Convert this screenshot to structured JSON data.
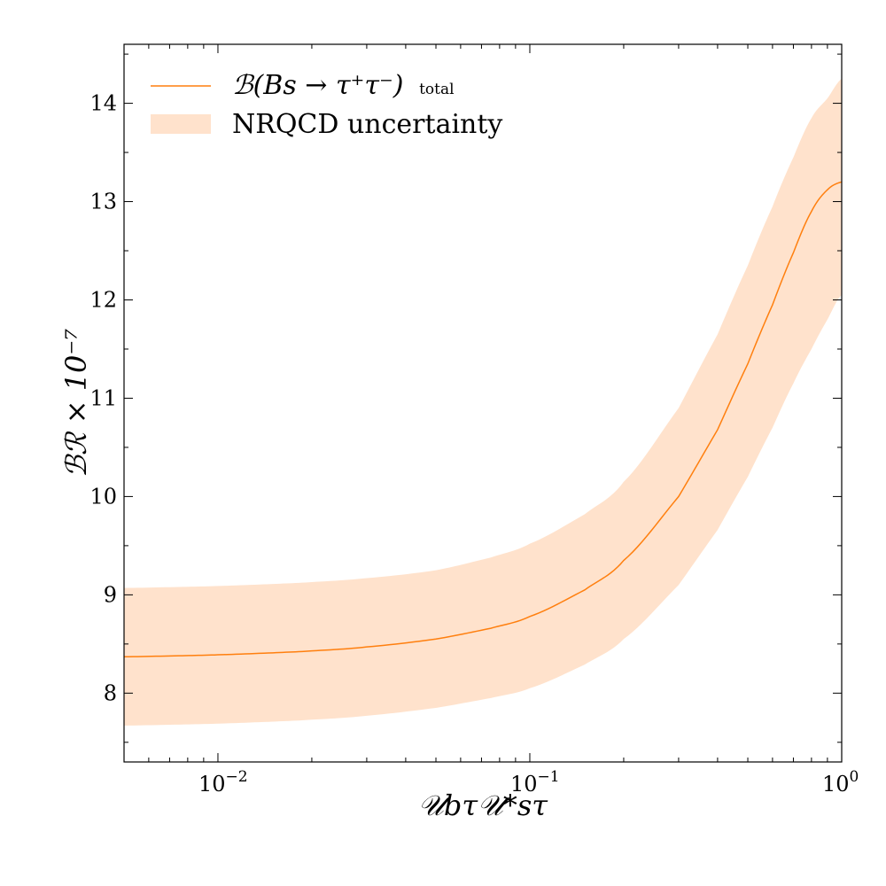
{
  "chart_data": {
    "type": "line",
    "title": "",
    "xlabel": "𝒰bτ𝒰*sτ",
    "ylabel": "ℬℛ × 10⁻⁷",
    "xscale": "log",
    "xlim": [
      0.005,
      1.0
    ],
    "ylim": [
      7.3,
      14.6
    ],
    "grid": false,
    "legend_position": "top-left",
    "x_ticks": [
      {
        "value": 0.01,
        "mantissa": "10",
        "exponent": "−2"
      },
      {
        "value": 0.1,
        "mantissa": "10",
        "exponent": "−1"
      },
      {
        "value": 1,
        "mantissa": "10",
        "exponent": "0"
      }
    ],
    "y_ticks": [
      {
        "value": 8,
        "label": "8"
      },
      {
        "value": 9,
        "label": "9"
      },
      {
        "value": 10,
        "label": "10"
      },
      {
        "value": 11,
        "label": "11"
      },
      {
        "value": 12,
        "label": "12"
      },
      {
        "value": 13,
        "label": "13"
      },
      {
        "value": 14,
        "label": "14"
      }
    ],
    "x": [
      0.005,
      0.0075,
      0.01,
      0.015,
      0.02,
      0.03,
      0.05,
      0.075,
      0.1,
      0.15,
      0.2,
      0.3,
      0.4,
      0.5,
      0.6,
      0.7,
      0.8,
      0.9,
      1.0
    ],
    "series": [
      {
        "name": "ℬ(Bs → τ⁺τ⁻) total",
        "kind": "line",
        "color": "#ff7f0e",
        "values": [
          8.37,
          8.38,
          8.39,
          8.41,
          8.43,
          8.47,
          8.55,
          8.66,
          8.78,
          9.05,
          9.35,
          10.0,
          10.68,
          11.35,
          11.95,
          12.48,
          12.9,
          13.12,
          13.2
        ]
      },
      {
        "name": "NRQCD uncertainty",
        "kind": "band",
        "color": "#ffe2cc",
        "lower": [
          7.67,
          7.68,
          7.69,
          7.71,
          7.73,
          7.77,
          7.85,
          7.95,
          8.05,
          8.29,
          8.55,
          9.1,
          9.66,
          10.2,
          10.7,
          11.15,
          11.5,
          11.8,
          12.05
        ],
        "upper": [
          9.07,
          9.08,
          9.09,
          9.11,
          9.13,
          9.17,
          9.25,
          9.38,
          9.52,
          9.82,
          10.15,
          10.9,
          11.65,
          12.35,
          12.95,
          13.45,
          13.85,
          14.05,
          14.25
        ]
      }
    ]
  },
  "legend": {
    "line_main": "ℬ(Bs → τ⁺τ⁻)",
    "line_sub": "total",
    "band_label": "NRQCD uncertainty"
  }
}
